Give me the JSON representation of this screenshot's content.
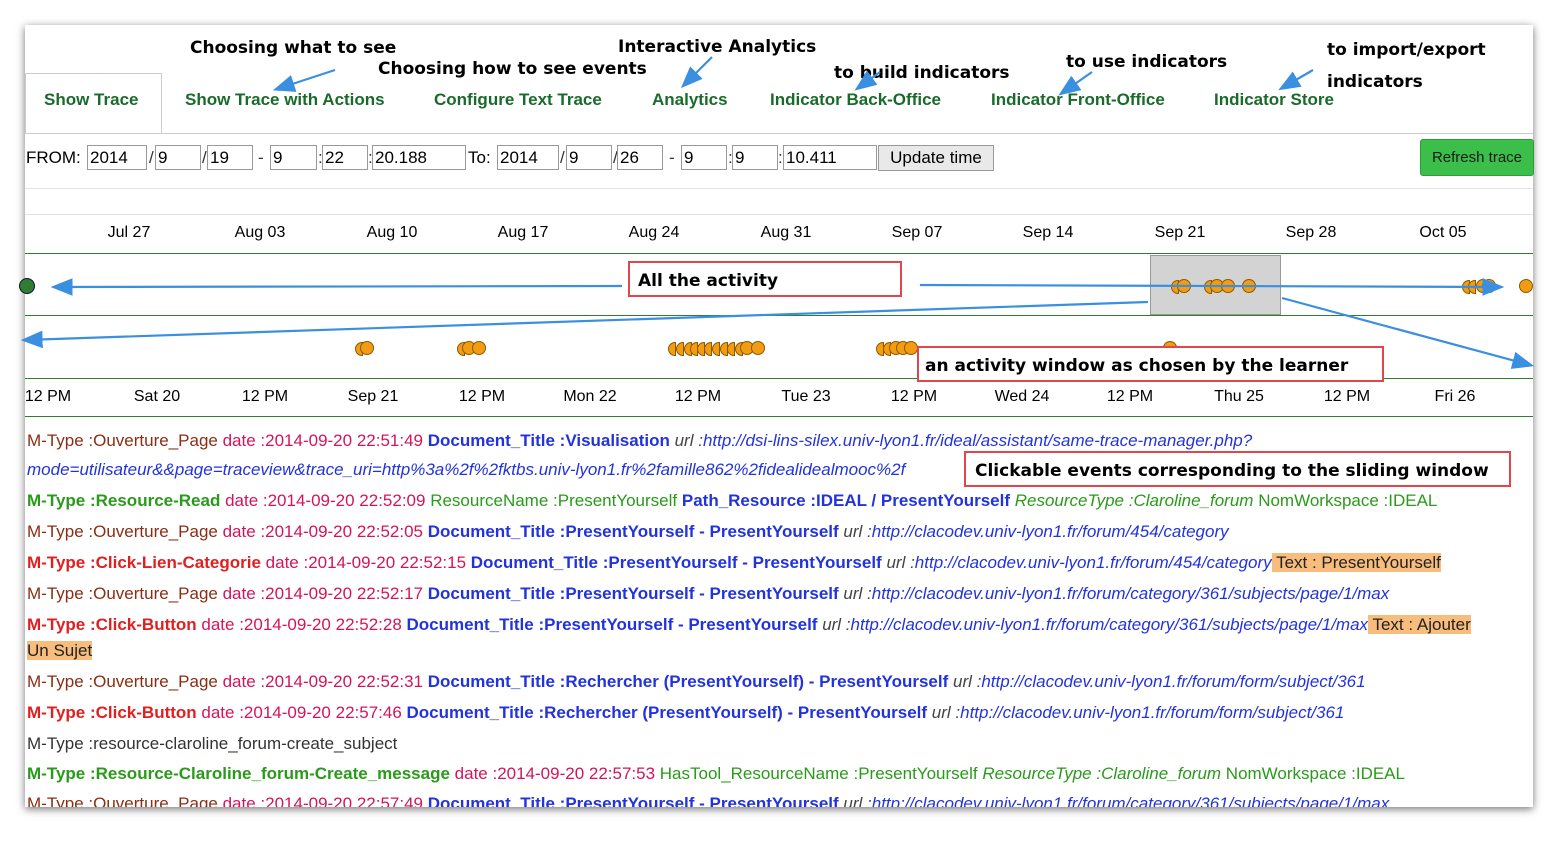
{
  "callouts": {
    "what_to_see": "Choosing what to see",
    "how_to_see": "Choosing how to see events",
    "interactive": "Interactive Analytics",
    "build": "to build indicators",
    "use": "to use indicators",
    "import_export_1": "to import/export",
    "import_export_2": "indicators"
  },
  "tabs": [
    {
      "label": "Show Trace",
      "active": true
    },
    {
      "label": "Show Trace with Actions"
    },
    {
      "label": "Configure Text Trace"
    },
    {
      "label": "Analytics"
    },
    {
      "label": "Indicator Back-Office"
    },
    {
      "label": "Indicator Front-Office"
    },
    {
      "label": "Indicator Store"
    }
  ],
  "time_form": {
    "from_label": "FROM:",
    "to_label": "To:",
    "from": {
      "year": "2014",
      "month": "9",
      "day": "19",
      "hour": "9",
      "minute": "22",
      "second": "20.188"
    },
    "to": {
      "year": "2014",
      "month": "9",
      "day": "26",
      "hour": "9",
      "minute": "9",
      "second": "10.411"
    },
    "slash": "/",
    "dash": "-",
    "colon": ":",
    "update_label": "Update time"
  },
  "refresh_label": "Refresh trace",
  "overview_ticks": [
    "Jul 27",
    "Aug 03",
    "Aug 10",
    "Aug 17",
    "Aug 24",
    "Aug 31",
    "Sep 07",
    "Sep 14",
    "Sep 21",
    "Sep 28",
    "Oct 05"
  ],
  "detail_ticks": [
    "12 PM",
    "Sat 20",
    "12 PM",
    "Sep 21",
    "12 PM",
    "Mon 22",
    "12 PM",
    "Tue 23",
    "12 PM",
    "Wed 24",
    "12 PM",
    "Thu 25",
    "12 PM",
    "Fri 26"
  ],
  "labels": {
    "all_activity": "All the activity",
    "activity_window": "an activity window as chosen by the learner",
    "clickable_events": "Clickable events corresponding to the sliding window"
  },
  "trace": {
    "l0": {
      "a": "M-Type :Ouverture_Page",
      "b": " date :2014-09-20 22:51:49 ",
      "c": "Document_Title :Visualisation",
      "d": " url :",
      "e": "http://dsi-lins-silex.univ-lyon1.fr/ideal/assistant/same-trace-manager.php?"
    },
    "l1": {
      "a": "mode=utilisateur&&page=traceview&trace_uri=http%3a%2f%2fktbs.univ-lyon1.fr%2famille862%2fidealidealmooc%2f"
    },
    "l2": {
      "a": "M-Type :Resource-Read",
      "b": " date :2014-09-20 22:52:09 ",
      "c": "ResourceName :PresentYourself ",
      "d": "Path_Resource :IDEAL / PresentYourself",
      "e": " ResourceType :Claroline_forum",
      "f": " NomWorkspace :IDEAL"
    },
    "l3": {
      "a": "M-Type :Ouverture_Page",
      "b": " date :2014-09-20 22:52:05 ",
      "c": "Document_Title :PresentYourself - PresentYourself",
      "d": " url :",
      "e": "http://clacodev.univ-lyon1.fr/forum/454/category"
    },
    "l4": {
      "a": "M-Type :Click-Lien-Categorie",
      "b": " date :2014-09-20 22:52:15 ",
      "c": "Document_Title :PresentYourself - PresentYourself",
      "d": " url :",
      "e": "http://clacodev.univ-lyon1.fr/forum/454/category",
      "f": " Text : PresentYourself"
    },
    "l5": {
      "a": "M-Type :Ouverture_Page",
      "b": " date :2014-09-20 22:52:17 ",
      "c": "Document_Title :PresentYourself - PresentYourself",
      "d": " url :",
      "e": "http://clacodev.univ-lyon1.fr/forum/category/361/subjects/page/1/max"
    },
    "l6": {
      "a": "M-Type :Click-Button",
      "b": " date :2014-09-20 22:52:28 ",
      "c": "Document_Title :PresentYourself - PresentYourself",
      "d": " url :",
      "e": "http://clacodev.univ-lyon1.fr/forum/category/361/subjects/page/1/max",
      "f": " Text : Ajouter",
      "g": "Un Sujet"
    },
    "l7": {
      "a": "M-Type :Ouverture_Page",
      "b": " date :2014-09-20 22:52:31 ",
      "c": "Document_Title :Rechercher (PresentYourself) - PresentYourself",
      "d": " url :",
      "e": "http://clacodev.univ-lyon1.fr/forum/form/subject/361"
    },
    "l8": {
      "a": "M-Type :Click-Button",
      "b": " date :2014-09-20 22:57:46 ",
      "c": "Document_Title :Rechercher (PresentYourself) - PresentYourself",
      "d": " url :",
      "e": "http://clacodev.univ-lyon1.fr/forum/form/subject/361"
    },
    "l9": {
      "a": "M-Type :resource-claroline_forum-create_subject"
    },
    "l10": {
      "a": "M-Type :Resource-Claroline_forum-Create_message",
      "b": " date :2014-09-20 22:57:53 ",
      "c": "HasTool_ResourceName :PresentYourself ",
      "d": "ResourceType :Claroline_forum",
      "e": " NomWorkspace :IDEAL"
    },
    "l11": {
      "a": "M-Type :Ouverture_Page",
      "b": " date :2014-09-20 22:57:49 ",
      "c": "Document_Title :PresentYourself - PresentYourself",
      "d": " url :",
      "e": "http://clacodev.univ-lyon1.fr/forum/category/361/subjects/page/1/max"
    }
  },
  "colors": {
    "accent_green": "#1a6b2b",
    "event_orange": "#f39c12",
    "callout_red": "#e0474c",
    "arrow_blue": "#3b8fe0",
    "refresh_green": "#3cbf4a"
  }
}
